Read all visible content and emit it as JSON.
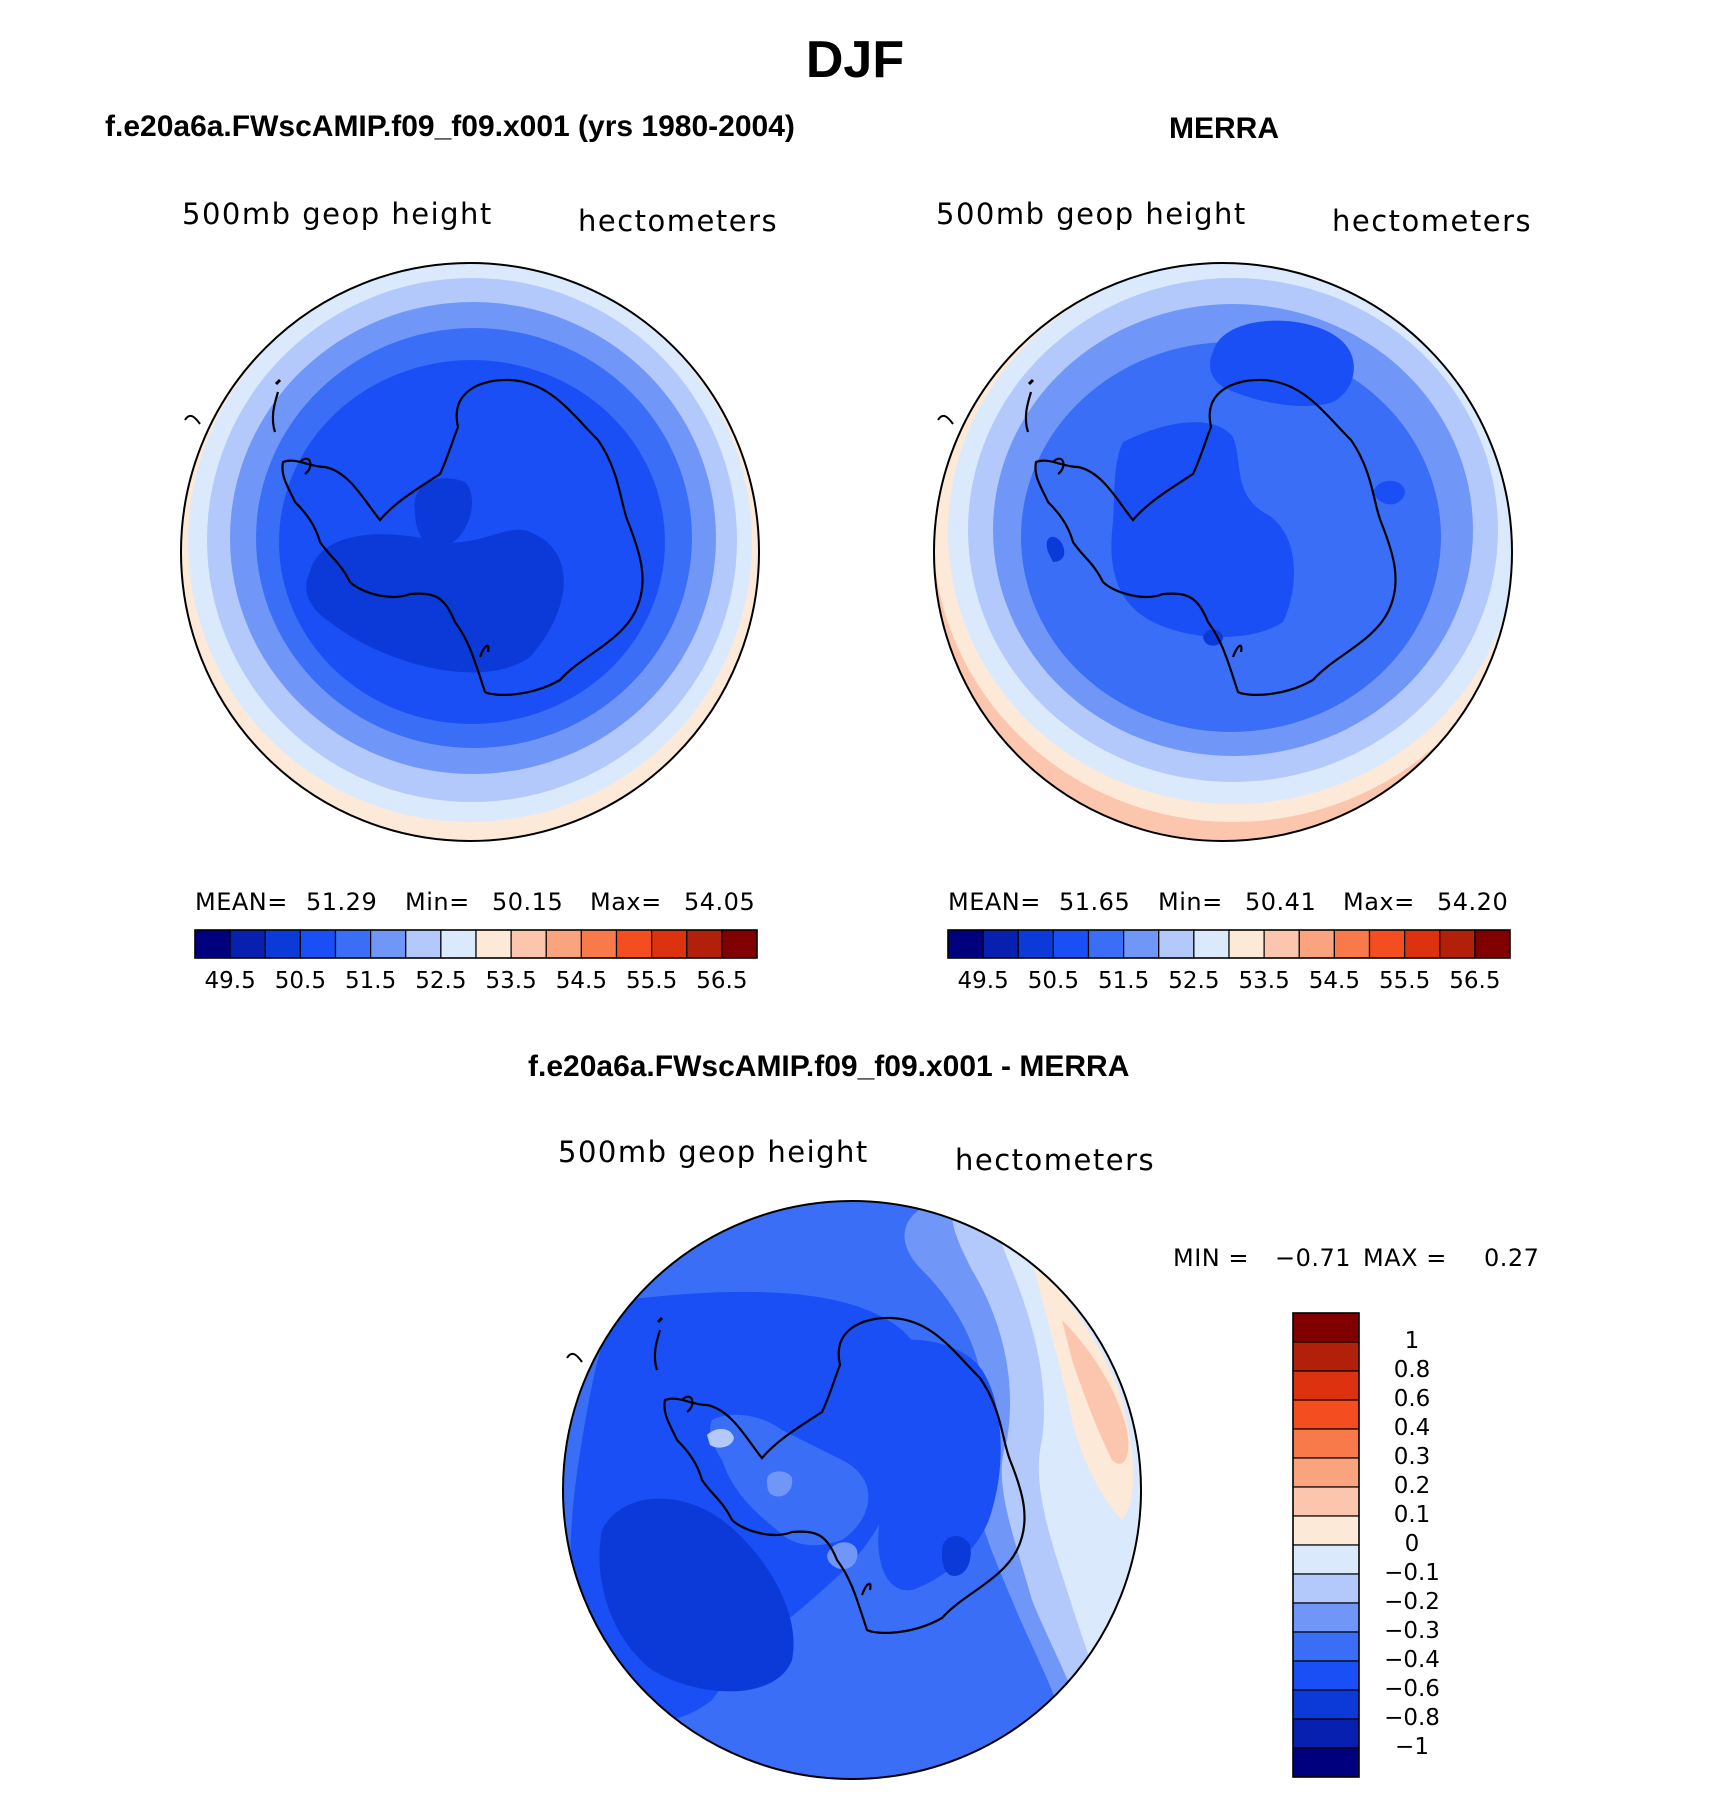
{
  "chart_data": {
    "type": "contour-map",
    "title": "DJF",
    "variable": "500mb geop height",
    "units": "hectometers",
    "panels": [
      {
        "id": "model",
        "title": "f.e20a6a.FWscAMIP.f09_f09.x001 (yrs 1980-2004)",
        "stats": {
          "mean_label": "MEAN=",
          "mean": "51.29",
          "min_label": "Min=",
          "min": "50.15",
          "max_label": "Max=",
          "max": "54.05"
        },
        "colorbar": {
          "colors": [
            "#00007f",
            "#0820b0",
            "#0b3ad8",
            "#1a4ff5",
            "#3a6ef7",
            "#7097f8",
            "#b3c8fb",
            "#dbe9fd",
            "#fde9d8",
            "#fcc6ae",
            "#faa47f",
            "#f87a4a",
            "#f44d1f",
            "#dc3210",
            "#b21f0a",
            "#800000"
          ],
          "tick_labels": [
            "49.5",
            "50.5",
            "51.5",
            "52.5",
            "53.5",
            "54.5",
            "55.5",
            "56.5"
          ]
        }
      },
      {
        "id": "obs",
        "title": "MERRA",
        "stats": {
          "mean_label": "MEAN=",
          "mean": "51.65",
          "min_label": "Min=",
          "min": "50.41",
          "max_label": "Max=",
          "max": "54.20"
        },
        "colorbar": {
          "colors": [
            "#00007f",
            "#0820b0",
            "#0b3ad8",
            "#1a4ff5",
            "#3a6ef7",
            "#7097f8",
            "#b3c8fb",
            "#dbe9fd",
            "#fde9d8",
            "#fcc6ae",
            "#faa47f",
            "#f87a4a",
            "#f44d1f",
            "#dc3210",
            "#b21f0a",
            "#800000"
          ],
          "tick_labels": [
            "49.5",
            "50.5",
            "51.5",
            "52.5",
            "53.5",
            "54.5",
            "55.5",
            "56.5"
          ]
        }
      },
      {
        "id": "diff",
        "title": "f.e20a6a.FWscAMIP.f09_f09.x001 - MERRA",
        "stats": {
          "min_label": "MIN =",
          "min": "−0.71",
          "max_label": "MAX =",
          "max": "0.27"
        },
        "colorbar": {
          "colors_top_to_bottom": [
            "#800000",
            "#b21f0a",
            "#dc3210",
            "#f44d1f",
            "#f87a4a",
            "#faa47f",
            "#fcc6ae",
            "#fde9d8",
            "#dbe9fd",
            "#b3c8fb",
            "#7097f8",
            "#3a6ef7",
            "#1a4ff5",
            "#0b3ad8",
            "#0820b0",
            "#00007f"
          ],
          "tick_labels": [
            "1",
            "0.8",
            "0.6",
            "0.4",
            "0.3",
            "0.2",
            "0.1",
            "0",
            "−0.1",
            "−0.2",
            "−0.3",
            "−0.4",
            "−0.6",
            "−0.8",
            "−1"
          ]
        }
      }
    ]
  }
}
